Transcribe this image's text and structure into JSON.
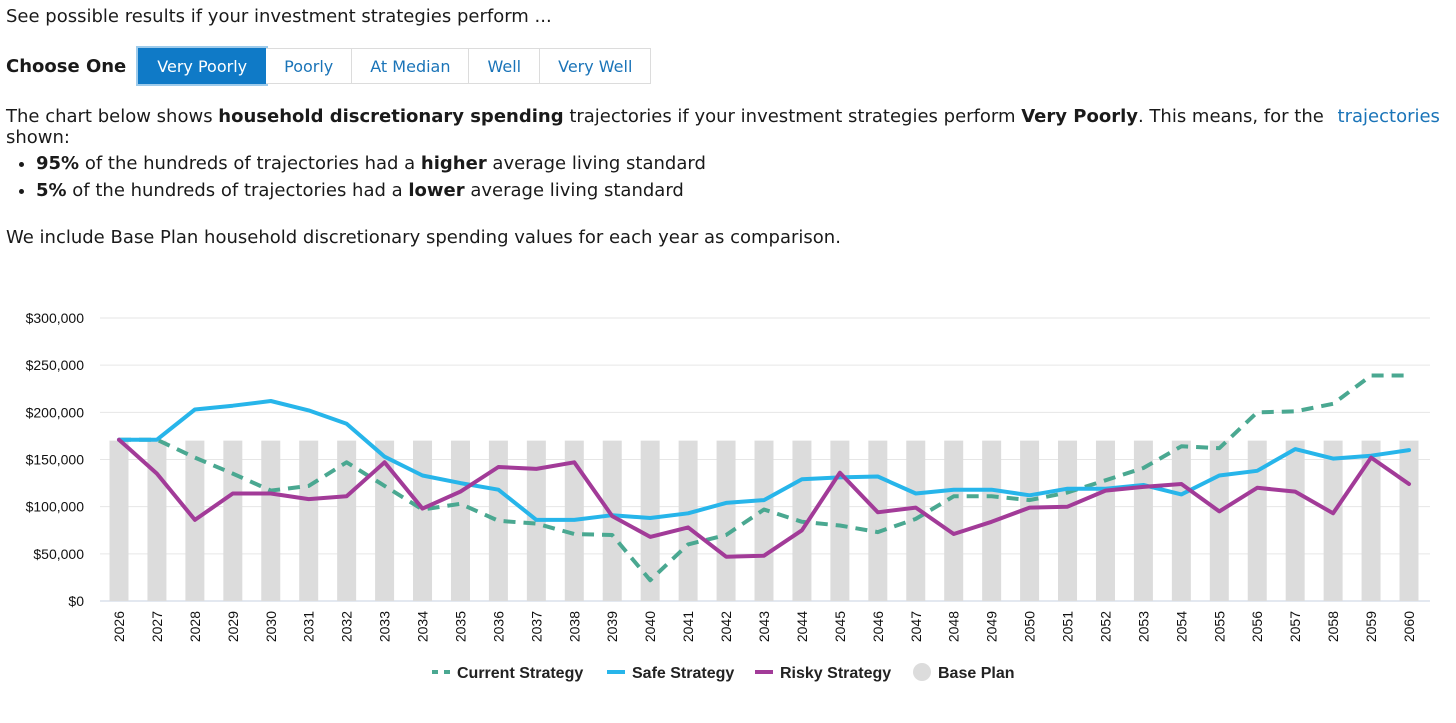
{
  "intro": "See possible results if your investment strategies perform ...",
  "choose": {
    "label": "Choose One",
    "options": [
      "Very Poorly",
      "Poorly",
      "At Median",
      "Well",
      "Very Well"
    ],
    "selected": "Very Poorly"
  },
  "description": {
    "p1": "The chart below shows ",
    "b1": "household discretionary spending",
    "p2": " trajectories if your investment strategies perform ",
    "b2": "Very Poorly",
    "p3": ". This means, for the",
    "link": "trajectories",
    "p4": "shown:"
  },
  "bullets": [
    {
      "pct": "95%",
      "pre": " of the hundreds of trajectories had a ",
      "bold": "higher",
      "post": " average living standard"
    },
    {
      "pct": "5%",
      "pre": " of the hundreds of trajectories had a ",
      "bold": "lower",
      "post": " average living standard"
    }
  ],
  "note": "We include Base Plan household discretionary spending values for each year as comparison.",
  "chart_data": {
    "type": "line",
    "title": "",
    "xlabel": "",
    "ylabel": "",
    "ylim": [
      0,
      300000
    ],
    "y_ticks": [
      0,
      50000,
      100000,
      150000,
      200000,
      250000,
      300000
    ],
    "y_tick_labels": [
      "$0",
      "$50,000",
      "$100,000",
      "$150,000",
      "$200,000",
      "$250,000",
      "$300,000"
    ],
    "categories": [
      "2026",
      "2027",
      "2028",
      "2029",
      "2030",
      "2031",
      "2032",
      "2033",
      "2034",
      "2035",
      "2036",
      "2037",
      "2038",
      "2039",
      "2040",
      "2041",
      "2042",
      "2043",
      "2044",
      "2045",
      "2046",
      "2047",
      "2048",
      "2049",
      "2050",
      "2051",
      "2052",
      "2053",
      "2054",
      "2055",
      "2056",
      "2057",
      "2058",
      "2059",
      "2060"
    ],
    "bars": {
      "name": "Base Plan",
      "color": "#dcdcdc",
      "values": [
        170000,
        170000,
        170000,
        170000,
        170000,
        170000,
        170000,
        170000,
        170000,
        170000,
        170000,
        170000,
        170000,
        170000,
        170000,
        170000,
        170000,
        170000,
        170000,
        170000,
        170000,
        170000,
        170000,
        170000,
        170000,
        170000,
        170000,
        170000,
        170000,
        170000,
        170000,
        170000,
        170000,
        170000,
        170000
      ]
    },
    "series": [
      {
        "name": "Current Strategy",
        "color": "#4aa891",
        "dashed": true,
        "values": [
          171000,
          171000,
          152000,
          135000,
          117000,
          122000,
          147000,
          122000,
          97000,
          103000,
          85000,
          82000,
          71000,
          70000,
          22000,
          60000,
          70000,
          97000,
          84000,
          80000,
          73000,
          87000,
          111000,
          111000,
          107000,
          115000,
          128000,
          141000,
          164000,
          162000,
          200000,
          201000,
          209000,
          239000,
          239000
        ]
      },
      {
        "name": "Safe Strategy",
        "color": "#27b5ea",
        "dashed": false,
        "values": [
          171000,
          171000,
          203000,
          207000,
          212000,
          202000,
          188000,
          153000,
          133000,
          125000,
          118000,
          86000,
          86000,
          91000,
          88000,
          93000,
          104000,
          107000,
          129000,
          131000,
          132000,
          114000,
          118000,
          118000,
          112000,
          119000,
          119000,
          123000,
          113000,
          133000,
          138000,
          161000,
          151000,
          154000,
          160000
        ]
      },
      {
        "name": "Risky Strategy",
        "color": "#a23b98",
        "dashed": false,
        "values": [
          171000,
          135000,
          86000,
          114000,
          114000,
          108000,
          111000,
          147000,
          98000,
          116000,
          142000,
          140000,
          147000,
          90000,
          68000,
          78000,
          47000,
          48000,
          75000,
          136000,
          94000,
          99000,
          71000,
          84000,
          99000,
          100000,
          117000,
          121000,
          124000,
          95000,
          120000,
          116000,
          93000,
          152000,
          124000
        ]
      }
    ],
    "legend": [
      {
        "name": "Current Strategy",
        "color": "#4aa891",
        "style": "dashed-line"
      },
      {
        "name": "Safe Strategy",
        "color": "#27b5ea",
        "style": "line"
      },
      {
        "name": "Risky Strategy",
        "color": "#a23b98",
        "style": "line"
      },
      {
        "name": "Base Plan",
        "color": "#dcdcdc",
        "style": "circle"
      }
    ],
    "legend_position": "bottom-center",
    "grid": true
  }
}
